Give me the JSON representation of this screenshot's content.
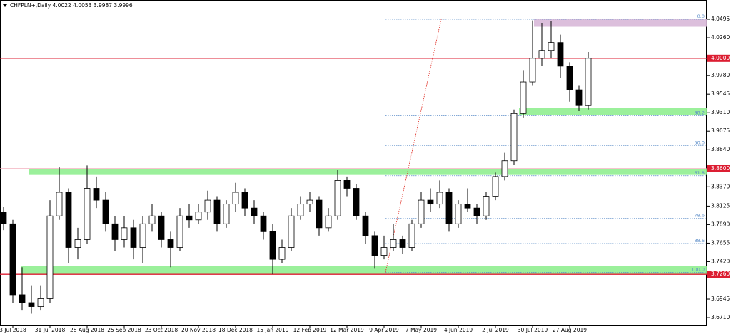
{
  "chart_data": {
    "type": "candlestick",
    "title": "CHFPLN+,Daily  4.0022 4.0053 3.9987 3.9996",
    "categories": [
      null,
      "3 Jul 2018",
      null,
      null,
      null,
      "31 Jul 2018",
      null,
      null,
      null,
      "28 Aug 2018",
      null,
      null,
      null,
      "25 Sep 2018",
      null,
      null,
      null,
      "23 Oct 2018",
      null,
      null,
      null,
      "20 Nov 2018",
      null,
      null,
      null,
      "18 Dec 2018",
      null,
      null,
      null,
      "15 Jan 2019",
      null,
      null,
      null,
      "12 Feb 2019",
      null,
      null,
      null,
      "12 Mar 2019",
      null,
      null,
      null,
      "9 Apr 2019",
      null,
      null,
      null,
      "7 May 2019",
      null,
      null,
      null,
      "4 Jun 2019",
      null,
      null,
      null,
      "2 Jul 2019",
      null,
      null,
      null,
      "30 Jul 2019",
      null,
      null,
      null,
      "27 Aug 2019",
      null,
      null
    ],
    "open": [
      3.805,
      3.79,
      3.7,
      3.69,
      3.685,
      3.695,
      3.8,
      3.83,
      3.76,
      3.77,
      3.835,
      3.82,
      3.79,
      3.77,
      3.785,
      3.76,
      3.79,
      3.8,
      3.77,
      3.76,
      3.8,
      3.795,
      3.805,
      3.82,
      3.79,
      3.815,
      3.83,
      3.81,
      3.8,
      3.78,
      3.745,
      3.76,
      3.8,
      3.815,
      3.82,
      3.785,
      3.8,
      3.845,
      3.835,
      3.8,
      3.775,
      3.75,
      3.76,
      3.77,
      3.76,
      3.79,
      3.82,
      3.815,
      3.83,
      3.79,
      3.815,
      3.81,
      3.8,
      3.825,
      3.85,
      3.87,
      3.93,
      3.97,
      4.0,
      4.01,
      4.02,
      3.99,
      3.96,
      3.94
    ],
    "high": [
      3.812,
      3.795,
      3.735,
      3.712,
      3.712,
      3.82,
      3.862,
      3.835,
      3.785,
      3.864,
      3.85,
      3.83,
      3.8,
      3.8,
      3.795,
      3.8,
      3.815,
      3.805,
      3.78,
      3.81,
      3.815,
      3.815,
      3.832,
      3.825,
      3.82,
      3.842,
      3.835,
      3.82,
      3.805,
      3.79,
      3.77,
      3.81,
      3.825,
      3.83,
      3.825,
      3.81,
      3.858,
      3.85,
      3.84,
      3.805,
      3.78,
      3.775,
      3.79,
      3.775,
      3.795,
      3.83,
      3.835,
      3.845,
      3.835,
      3.82,
      3.835,
      3.815,
      3.83,
      3.855,
      3.88,
      3.935,
      3.985,
      4.048,
      4.045,
      4.047,
      4.03,
      3.995,
      3.965,
      4.008
    ],
    "low": [
      3.782,
      3.69,
      3.68,
      3.676,
      3.68,
      3.69,
      3.795,
      3.74,
      3.745,
      3.765,
      3.81,
      3.78,
      3.755,
      3.76,
      3.745,
      3.74,
      3.78,
      3.76,
      3.735,
      3.755,
      3.785,
      3.79,
      3.795,
      3.78,
      3.785,
      3.805,
      3.8,
      3.79,
      3.77,
      3.726,
      3.74,
      3.755,
      3.795,
      3.805,
      3.775,
      3.78,
      3.795,
      3.825,
      3.795,
      3.765,
      3.733,
      3.745,
      3.755,
      3.752,
      3.755,
      3.785,
      3.805,
      3.81,
      3.78,
      3.785,
      3.805,
      3.79,
      3.795,
      3.82,
      3.845,
      3.865,
      3.925,
      3.965,
      3.99,
      4.0,
      3.975,
      3.945,
      3.933,
      3.935
    ],
    "close": [
      3.79,
      3.7,
      3.69,
      3.685,
      3.695,
      3.8,
      3.83,
      3.76,
      3.77,
      3.835,
      3.82,
      3.79,
      3.77,
      3.785,
      3.76,
      3.79,
      3.8,
      3.77,
      3.76,
      3.8,
      3.795,
      3.805,
      3.82,
      3.79,
      3.815,
      3.83,
      3.81,
      3.8,
      3.78,
      3.745,
      3.76,
      3.8,
      3.815,
      3.82,
      3.785,
      3.8,
      3.845,
      3.835,
      3.8,
      3.775,
      3.75,
      3.76,
      3.77,
      3.76,
      3.79,
      3.82,
      3.815,
      3.83,
      3.79,
      3.815,
      3.81,
      3.8,
      3.825,
      3.85,
      3.87,
      3.93,
      3.97,
      4.0,
      4.01,
      4.02,
      3.99,
      3.96,
      3.94,
      4.0
    ],
    "ylim": [
      3.6602,
      4.0739
    ],
    "yticks": [
      {
        "value": 4.0495,
        "label": "4.0495"
      },
      {
        "value": 4.026,
        "label": "4.0260"
      },
      {
        "value": 3.978,
        "label": "3.9780"
      },
      {
        "value": 3.9545,
        "label": "3.9545"
      },
      {
        "value": 3.931,
        "label": "3.9310"
      },
      {
        "value": 3.9075,
        "label": "3.9075"
      },
      {
        "value": 3.884,
        "label": "3.8840"
      },
      {
        "value": 3.837,
        "label": "3.8370"
      },
      {
        "value": 3.8125,
        "label": "3.8125"
      },
      {
        "value": 3.789,
        "label": "3.7890"
      },
      {
        "value": 3.7655,
        "label": "3.7655"
      },
      {
        "value": 3.742,
        "label": "3.7420"
      },
      {
        "value": 3.6945,
        "label": "3.6945"
      },
      {
        "value": 3.671,
        "label": "3.6710"
      }
    ],
    "price_levels": [
      {
        "value": 4.0,
        "label": "4.0000",
        "color": "#dc1e32"
      },
      {
        "value": 3.86,
        "label": "3.8600",
        "color": "#f0a0b0"
      },
      {
        "value": 3.726,
        "label": "3.7260",
        "color": "#dc1e32"
      }
    ],
    "zones": [
      {
        "from": 4.0495,
        "to": 4.04,
        "color": "#d8b8d8"
      },
      {
        "from": 3.937,
        "to": 3.928,
        "color": "#90ee90"
      },
      {
        "from": 3.86,
        "to": 3.852,
        "color": "#90ee90"
      },
      {
        "from": 3.7365,
        "to": 3.726,
        "color": "#90ee90"
      }
    ],
    "fib_levels": [
      {
        "label": "0.0",
        "value": 4.0495
      },
      {
        "label": "38.2",
        "value": 3.927
      },
      {
        "label": "50.0",
        "value": 3.889
      },
      {
        "label": "61.8",
        "value": 3.851
      },
      {
        "label": "78.6",
        "value": 3.797
      },
      {
        "label": "88.6",
        "value": 3.765
      },
      {
        "label": "100.0",
        "value": 3.7285
      }
    ],
    "fib_anchor": [
      3.7285,
      4.0495
    ]
  }
}
